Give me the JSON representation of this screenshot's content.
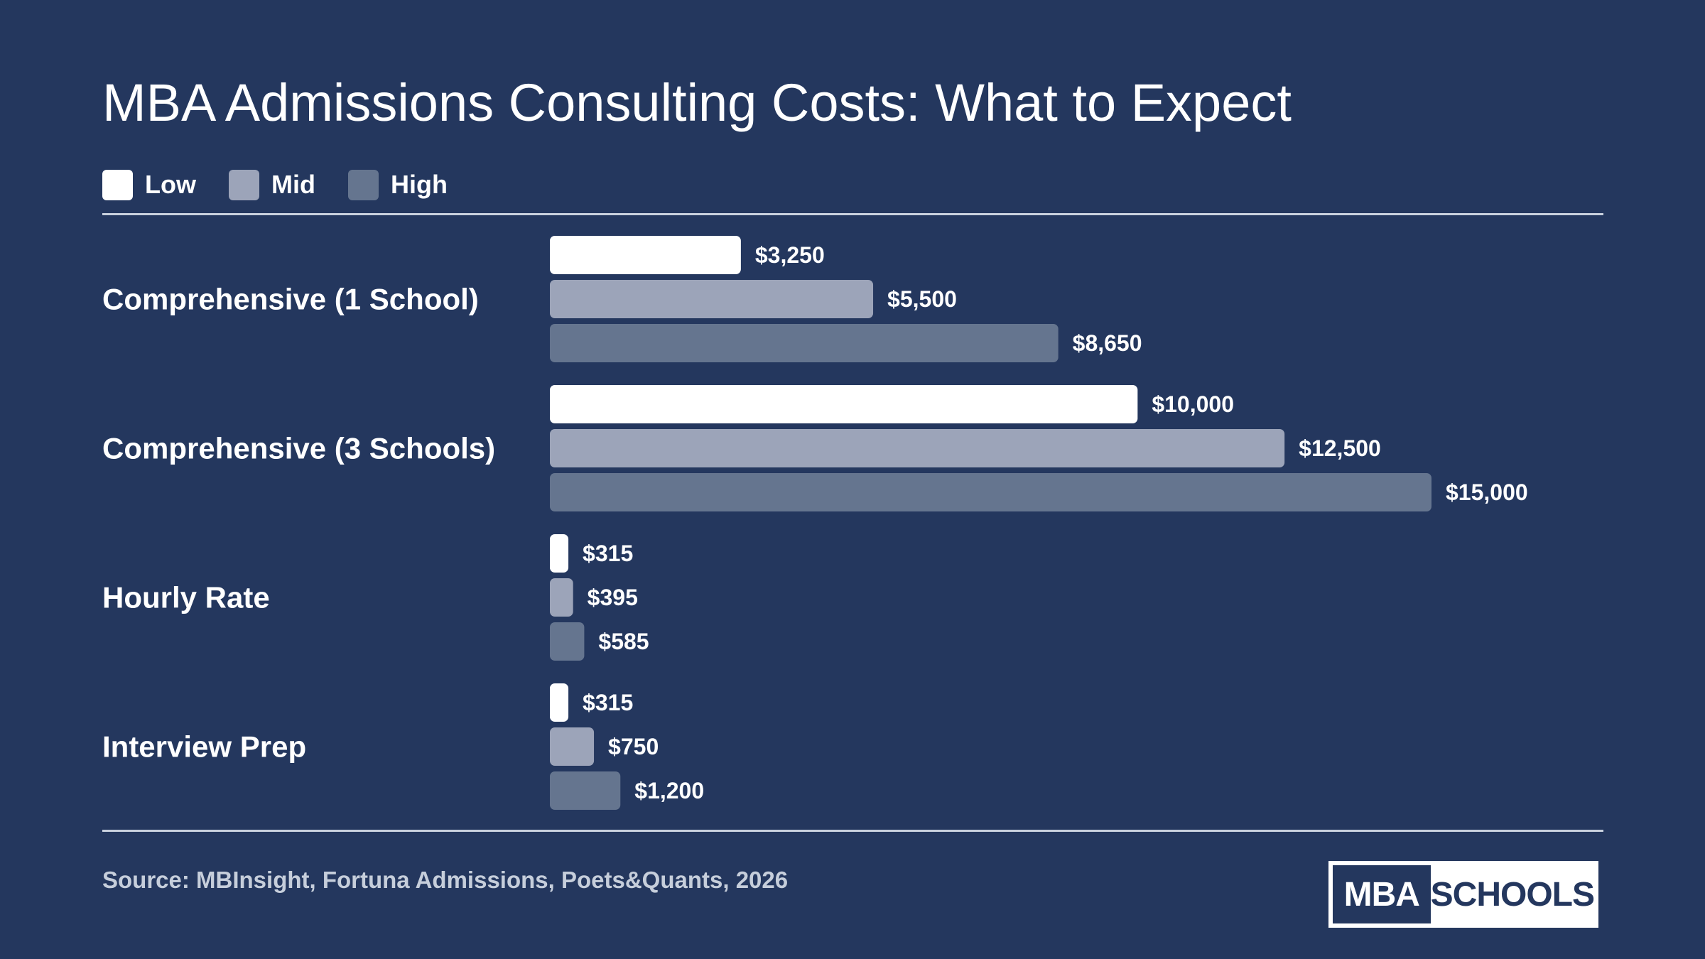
{
  "chart_data": {
    "type": "bar",
    "orientation": "horizontal",
    "title": "MBA Admissions Consulting Costs: What to Expect",
    "categories": [
      "Comprehensive (1 School)",
      "Comprehensive (3 Schools)",
      "Hourly Rate",
      "Interview Prep"
    ],
    "series": [
      {
        "name": "Low",
        "color": "#ffffff",
        "values": [
          3250,
          10000,
          315,
          315
        ],
        "labels": [
          "$3,250",
          "$10,000",
          "$315",
          "$315"
        ]
      },
      {
        "name": "Mid",
        "color": "#9ca4b9",
        "values": [
          5500,
          12500,
          395,
          750
        ],
        "labels": [
          "$5,500",
          "$12,500",
          "$395",
          "$750"
        ]
      },
      {
        "name": "High",
        "color": "#65758f",
        "values": [
          8650,
          15000,
          585,
          1200
        ],
        "labels": [
          "$8,650",
          "$15,000",
          "$585",
          "$1,200"
        ]
      }
    ],
    "legend_position": "top-left",
    "grid": false,
    "xlim": [
      0,
      15000
    ]
  },
  "footer": {
    "source": "Source: MBInsight, Fortuna Admissions, Poets&Quants, 2026"
  },
  "logo": {
    "left_text": "MBA",
    "right_text": "SCHOOLS"
  },
  "colors": {
    "background": "#24375e",
    "rule": "#c9d1de",
    "source_text": "#c6cedb"
  }
}
